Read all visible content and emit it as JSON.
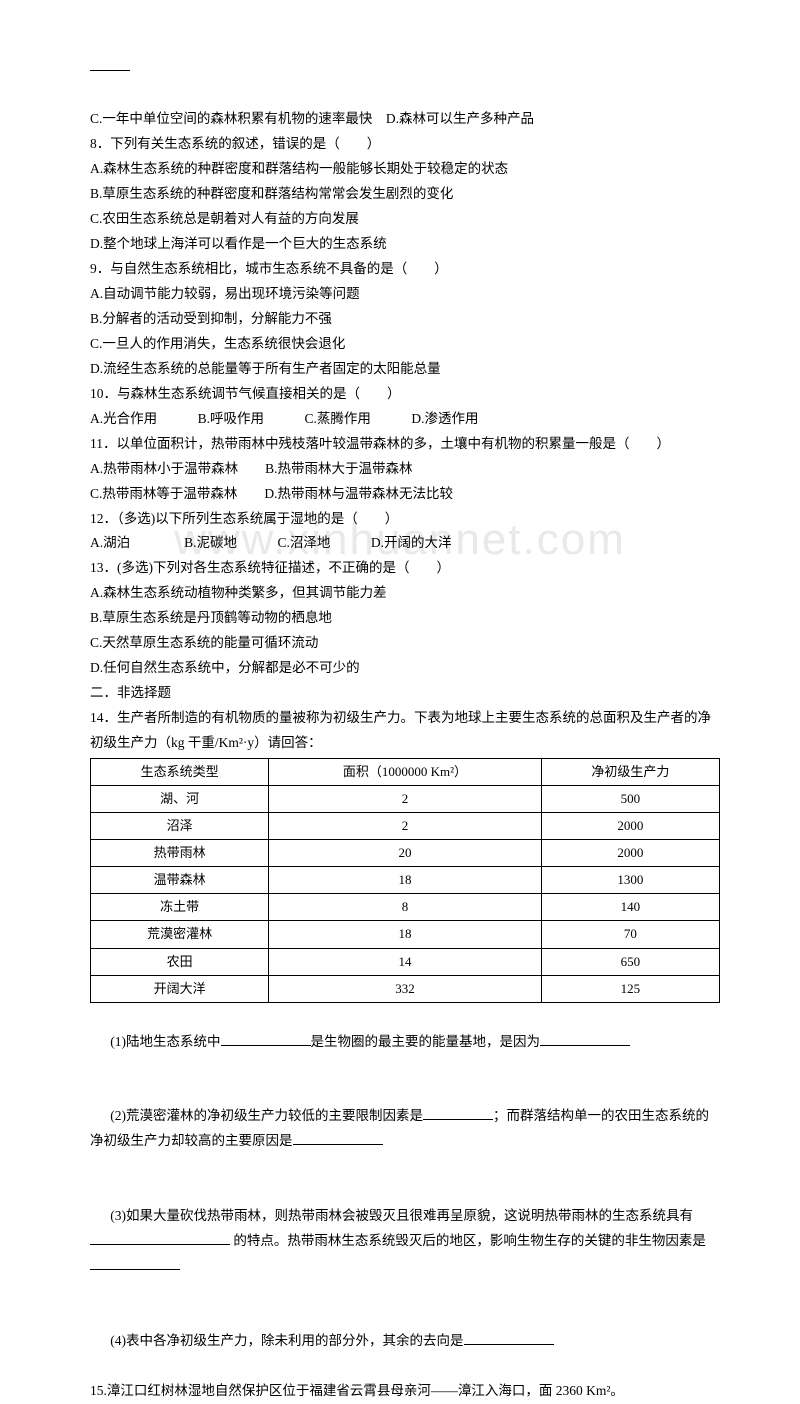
{
  "watermark": "www.xinhuannet.com",
  "lines": {
    "l1": "C.一年中单位空间的森林积累有机物的速率最快 D.森林可以生产多种产品",
    "q8": "8．下列有关生态系统的叙述，错误的是（  ）",
    "q8a": "A.森林生态系统的种群密度和群落结构一般能够长期处于较稳定的状态",
    "q8b": "B.草原生态系统的种群密度和群落结构常常会发生剧烈的变化",
    "q8c": "C.农田生态系统总是朝着对人有益的方向发展",
    "q8d": "D.整个地球上海洋可以看作是一个巨大的生态系统",
    "q9": "9．与自然生态系统相比，城市生态系统不具备的是（  ）",
    "q9a": "A.自动调节能力较弱，易出现环境污染等问题",
    "q9b": "B.分解者的活动受到抑制，分解能力不强",
    "q9c": "C.一旦人的作用消失，生态系统很快会退化",
    "q9d": "D.流经生态系统的总能量等于所有生产者固定的太阳能总量",
    "q10": "10．与森林生态系统调节气候直接相关的是（  ）",
    "q10opts": "A.光合作用   B.呼吸作用   C.蒸腾作用   D.渗透作用",
    "q11": "11．以单位面积计，热带雨林中残枝落叶较温带森林的多，土壤中有机物的积累量一般是（  ）",
    "q11ab": "A.热带雨林小于温带森林  B.热带雨林大于温带森林",
    "q11cd": "C.热带雨林等于温带森林  D.热带雨林与温带森林无法比较",
    "q12": "12．（多选)以下所列生态系统属于湿地的是（  ）",
    "q12opts": "A.湖泊    B.泥碳地   C.沼泽地   D.开阔的大洋",
    "q13": "13．(多选)下列对各生态系统特征描述，不正确的是（  ）",
    "q13a": "A.森林生态系统动植物种类繁多，但其调节能力差",
    "q13b": "B.草原生态系统是丹顶鹤等动物的栖息地",
    "q13c": "C.天然草原生态系统的能量可循环流动",
    "q13d": "D.任何自然生态系统中，分解都是必不可少的",
    "sec2": "二．非选择题",
    "q14a": "14．生产者所制造的有机物质的量被称为初级生产力。下表为地球上主要生态系统的总面积及生产者的净初级生产力（kg 干重/Km²·y）请回答：",
    "q14_1a": "(1)陆地生态系统中",
    "q14_1b": "是生物圈的最主要的能量基地，是因为",
    "q14_2a": "(2)荒漠密灌林的净初级生产力较低的主要限制因素是",
    "q14_2b": "；而群落结构单一的农田生态系统的净初级生产力却较高的主要原因是",
    "q14_3a": "(3)如果大量砍伐热带雨林，则热带雨林会被毁灭且很难再呈原貌，这说明热带雨林的生态系统具有",
    "q14_3b": " 的特点。热带雨林生态系统毁灭后的地区，影响生物生存的关键的非生物因素是",
    "q14_4a": "(4)表中各净初级生产力，除未利用的部分外，其余的去向是",
    "q15": "15.漳江口红树林湿地自然保护区位于福建省云霄县母亲河——漳江入海口，面 2360 Km²。"
  },
  "table": {
    "headers": [
      "生态系统类型",
      "面积（1000000 Km²）",
      "净初级生产力"
    ],
    "rows": [
      [
        "湖、河",
        "2",
        "500"
      ],
      [
        "沼泽",
        "2",
        "2000"
      ],
      [
        "热带雨林",
        "20",
        "2000"
      ],
      [
        "温带森林",
        "18",
        "1300"
      ],
      [
        "冻土带",
        "8",
        "140"
      ],
      [
        "荒漠密灌林",
        "18",
        "70"
      ],
      [
        "农田",
        "14",
        "650"
      ],
      [
        "开阔大洋",
        "332",
        "125"
      ]
    ],
    "col_widths": [
      "33%",
      "33%",
      "34%"
    ],
    "border_color": "#000000",
    "font_size": 13
  },
  "blanks": {
    "w90": 90,
    "w70": 70,
    "w140": 140
  }
}
